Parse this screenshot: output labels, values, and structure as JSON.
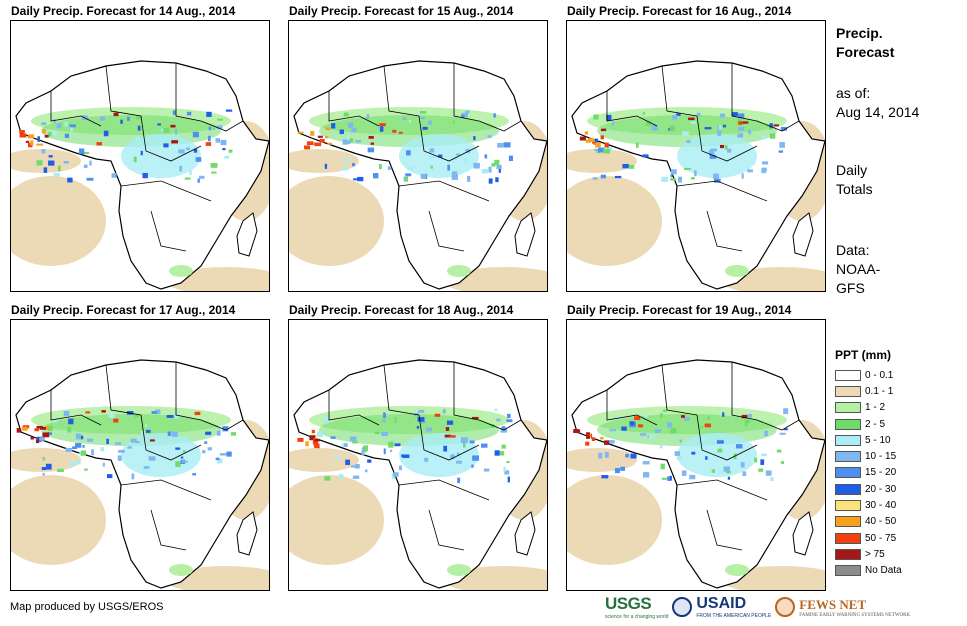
{
  "panels": [
    {
      "title": "Daily Precip. Forecast for 14 Aug., 2014"
    },
    {
      "title": "Daily Precip. Forecast for 15 Aug., 2014"
    },
    {
      "title": "Daily Precip. Forecast for 16 Aug., 2014"
    },
    {
      "title": "Daily Precip. Forecast for 17 Aug., 2014"
    },
    {
      "title": "Daily Precip. Forecast for 18 Aug., 2014"
    },
    {
      "title": "Daily Precip. Forecast for 19 Aug., 2014"
    }
  ],
  "side": {
    "title_line1": "Precip.",
    "title_line2": "Forecast",
    "asof_label": "as of:",
    "asof_date": "Aug 14, 2014",
    "totals_line1": "Daily",
    "totals_line2": "Totals",
    "data_label": "Data:",
    "data_source_line1": "NOAA-",
    "data_source_line2": "GFS"
  },
  "legend": {
    "title": "PPT (mm)",
    "items": [
      {
        "label": "0 - 0.1",
        "color": "#ffffff"
      },
      {
        "label": "0.1 - 1",
        "color": "#ecd9b6"
      },
      {
        "label": "1 - 2",
        "color": "#b6f0a5"
      },
      {
        "label": "2 - 5",
        "color": "#6fdc6a"
      },
      {
        "label": "5 - 10",
        "color": "#a9eef5"
      },
      {
        "label": "10 - 15",
        "color": "#7fb7f1"
      },
      {
        "label": "15 - 20",
        "color": "#4f8ff0"
      },
      {
        "label": "20 - 30",
        "color": "#1f5ee8"
      },
      {
        "label": "30 - 40",
        "color": "#fbe27a"
      },
      {
        "label": "40 - 50",
        "color": "#f7a11d"
      },
      {
        "label": "50 - 75",
        "color": "#f0420f"
      },
      {
        "label": "> 75",
        "color": "#a81717"
      },
      {
        "label": "No Data",
        "color": "#8c8c8c"
      }
    ]
  },
  "footer": {
    "credit": "Map produced by USGS/EROS"
  },
  "logos": {
    "usgs": "USGS",
    "usgs_tagline": "science for a changing world",
    "usaid": "USAID",
    "usaid_tagline": "FROM THE AMERICAN PEOPLE",
    "fews": "FEWS NET",
    "fews_tagline": "FAMINE EARLY WARNING SYSTEMS NETWORK"
  }
}
